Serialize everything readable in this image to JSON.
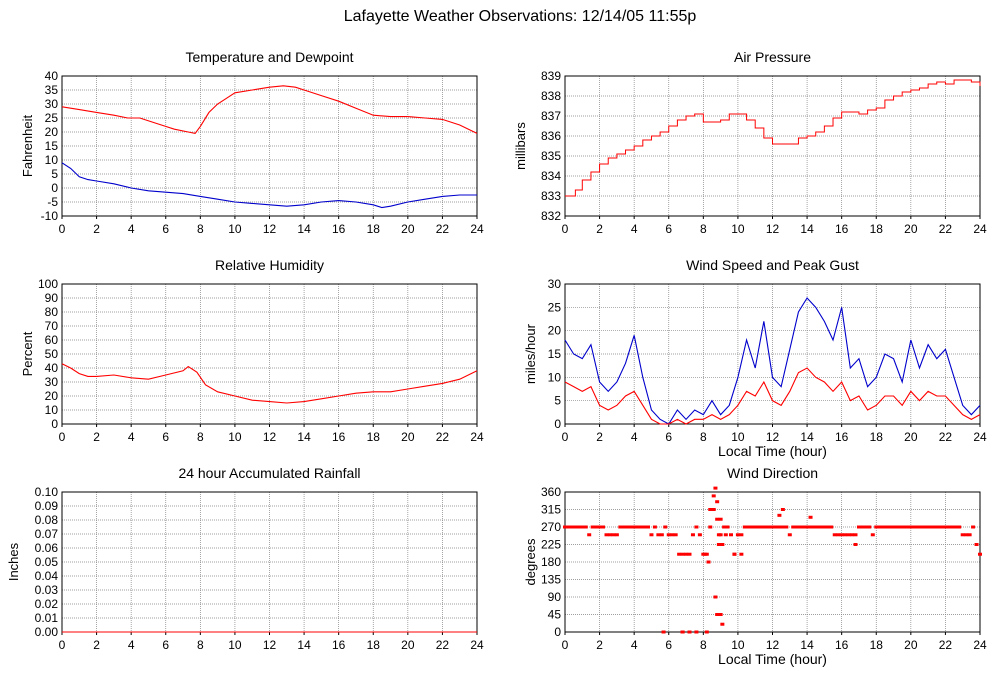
{
  "page": {
    "title": "Lafayette Weather Observations: 12/14/05 11:55p"
  },
  "colors": {
    "red": "#ff0000",
    "blue": "#0000cc",
    "grid": "#808080"
  },
  "chart_data": [
    {
      "id": "temp",
      "type": "line",
      "title": "Temperature and Dewpoint",
      "xlabel": "",
      "ylabel": "Fahrenheit",
      "xlim": [
        0,
        24
      ],
      "ylim": [
        -10,
        40
      ],
      "xticks": [
        0,
        2,
        4,
        6,
        8,
        10,
        12,
        14,
        16,
        18,
        20,
        22,
        24
      ],
      "yticks": [
        -10,
        -5,
        0,
        5,
        10,
        15,
        20,
        25,
        30,
        35,
        40
      ],
      "grid": true,
      "series": [
        {
          "color": "red",
          "x": [
            0,
            1,
            2,
            3,
            3.8,
            4.5,
            5.5,
            6.5,
            7.3,
            7.7,
            8,
            8.5,
            9,
            9.5,
            10,
            11,
            12,
            12.8,
            13.5,
            14,
            15,
            16,
            17,
            18,
            19,
            20,
            21,
            22,
            23,
            24
          ],
          "y": [
            29,
            28,
            27,
            26,
            25,
            25,
            23,
            21,
            20,
            19.5,
            22,
            27,
            30,
            32,
            34,
            35,
            36,
            36.5,
            36,
            35,
            33,
            31,
            28.5,
            26,
            25.5,
            25.5,
            25,
            24.5,
            22.5,
            19.5
          ]
        },
        {
          "color": "blue",
          "x": [
            0,
            0.5,
            1,
            1.5,
            2,
            3,
            4,
            5,
            6,
            7,
            8,
            9,
            10,
            11,
            12,
            13,
            14,
            15,
            16,
            17,
            18,
            18.5,
            19,
            20,
            21,
            22,
            23,
            24
          ],
          "y": [
            9,
            7,
            4,
            3,
            2.5,
            1.5,
            0,
            -1,
            -1.5,
            -2,
            -3,
            -4,
            -5,
            -5.5,
            -6,
            -6.5,
            -6,
            -5,
            -4.5,
            -5,
            -6,
            -7,
            -6.5,
            -5,
            -4,
            -3,
            -2.5,
            -2.5
          ]
        }
      ]
    },
    {
      "id": "pressure",
      "type": "line",
      "title": "Air Pressure",
      "xlabel": "",
      "ylabel": "millibars",
      "xlim": [
        0,
        24
      ],
      "ylim": [
        832,
        839
      ],
      "xticks": [
        0,
        2,
        4,
        6,
        8,
        10,
        12,
        14,
        16,
        18,
        20,
        22,
        24
      ],
      "yticks": [
        832,
        833,
        834,
        835,
        836,
        837,
        838,
        839
      ],
      "grid": true,
      "series": [
        {
          "color": "red",
          "x": [
            0,
            0.6,
            1,
            1.5,
            2,
            2.5,
            3,
            3.5,
            4,
            4.5,
            5,
            5.5,
            6,
            6.5,
            7,
            7.5,
            8,
            9,
            9.5,
            10,
            10.5,
            11,
            11.5,
            12,
            13,
            13.5,
            14,
            14.5,
            15,
            15.5,
            16,
            16.5,
            17,
            17.5,
            18,
            18.5,
            19,
            19.5,
            20,
            20.5,
            21,
            21.5,
            22,
            22.5,
            23,
            23.5,
            24
          ],
          "y": [
            833,
            833.3,
            833.8,
            834.2,
            834.6,
            834.9,
            835.1,
            835.3,
            835.5,
            835.8,
            836,
            836.2,
            836.5,
            836.8,
            837,
            837.1,
            836.7,
            836.8,
            837.1,
            837.1,
            836.8,
            836.4,
            835.9,
            835.6,
            835.6,
            835.9,
            836,
            836.2,
            836.5,
            836.9,
            837.2,
            837.2,
            837.1,
            837.3,
            837.4,
            837.8,
            838,
            838.2,
            838.3,
            838.4,
            838.6,
            838.7,
            838.6,
            838.8,
            838.8,
            838.7,
            838.5
          ]
        }
      ]
    },
    {
      "id": "humidity",
      "type": "line",
      "title": "Relative Humidity",
      "xlabel": "",
      "ylabel": "Percent",
      "xlim": [
        0,
        24
      ],
      "ylim": [
        0,
        100
      ],
      "xticks": [
        0,
        2,
        4,
        6,
        8,
        10,
        12,
        14,
        16,
        18,
        20,
        22,
        24
      ],
      "yticks": [
        0,
        10,
        20,
        30,
        40,
        50,
        60,
        70,
        80,
        90,
        100
      ],
      "grid": true,
      "series": [
        {
          "color": "red",
          "x": [
            0,
            0.5,
            1,
            1.5,
            2,
            3,
            4,
            5,
            6,
            7,
            7.3,
            7.8,
            8.3,
            9,
            10,
            11,
            12,
            13,
            14,
            15,
            16,
            17,
            18,
            19,
            20,
            21,
            22,
            23,
            24
          ],
          "y": [
            43,
            40,
            36,
            34,
            34,
            35,
            33,
            32,
            35,
            38,
            41,
            37,
            28,
            23,
            20,
            17,
            16,
            15,
            16,
            18,
            20,
            22,
            23,
            23,
            25,
            27,
            29,
            32,
            38
          ]
        }
      ]
    },
    {
      "id": "wind-speed",
      "type": "line",
      "title": "Wind Speed and Peak Gust",
      "xlabel": "Local Time (hour)",
      "ylabel": "miles/hour",
      "xlim": [
        0,
        24
      ],
      "ylim": [
        0,
        30
      ],
      "xticks": [
        0,
        2,
        4,
        6,
        8,
        10,
        12,
        14,
        16,
        18,
        20,
        22,
        24
      ],
      "yticks": [
        0,
        5,
        10,
        15,
        20,
        25,
        30
      ],
      "grid": true,
      "series": [
        {
          "color": "blue",
          "x": [
            0,
            0.5,
            1,
            1.5,
            2,
            2.5,
            3,
            3.5,
            4,
            4.5,
            5,
            5.5,
            6,
            6.5,
            7,
            7.5,
            8,
            8.5,
            9,
            9.5,
            10,
            10.5,
            11,
            11.5,
            12,
            12.5,
            13,
            13.5,
            14,
            14.5,
            15,
            15.5,
            16,
            16.5,
            17,
            17.5,
            18,
            18.5,
            19,
            19.5,
            20,
            20.5,
            21,
            21.5,
            22,
            22.5,
            23,
            23.5,
            24
          ],
          "y": [
            18,
            15,
            14,
            17,
            9,
            7,
            9,
            13,
            19,
            10,
            3,
            1,
            0,
            3,
            1,
            3,
            2,
            5,
            2,
            4,
            10,
            18,
            12,
            22,
            10,
            8,
            16,
            24,
            27,
            25,
            22,
            18,
            25,
            12,
            14,
            8,
            10,
            15,
            14,
            9,
            18,
            12,
            17,
            14,
            16,
            10,
            4,
            2,
            4
          ]
        },
        {
          "color": "red",
          "x": [
            0,
            0.5,
            1,
            1.5,
            2,
            2.5,
            3,
            3.5,
            4,
            4.5,
            5,
            5.5,
            6,
            6.5,
            7,
            7.5,
            8,
            8.5,
            9,
            9.5,
            10,
            10.5,
            11,
            11.5,
            12,
            12.5,
            13,
            13.5,
            14,
            14.5,
            15,
            15.5,
            16,
            16.5,
            17,
            17.5,
            18,
            18.5,
            19,
            19.5,
            20,
            20.5,
            21,
            21.5,
            22,
            22.5,
            23,
            23.5,
            24
          ],
          "y": [
            9,
            8,
            7,
            8,
            4,
            3,
            4,
            6,
            7,
            4,
            1,
            0,
            0,
            1,
            0,
            1,
            1,
            2,
            1,
            2,
            4,
            7,
            6,
            9,
            5,
            4,
            7,
            11,
            12,
            10,
            9,
            7,
            9,
            5,
            6,
            3,
            4,
            6,
            6,
            4,
            7,
            5,
            7,
            6,
            6,
            4,
            2,
            1,
            2
          ]
        }
      ]
    },
    {
      "id": "rainfall",
      "type": "line",
      "title": "24 hour Accumulated Rainfall",
      "xlabel": "",
      "ylabel": "Inches",
      "xlim": [
        0,
        24
      ],
      "ylim": [
        0,
        0.1
      ],
      "xticks": [
        0,
        2,
        4,
        6,
        8,
        10,
        12,
        14,
        16,
        18,
        20,
        22,
        24
      ],
      "yticks": [
        0,
        0.01,
        0.02,
        0.03,
        0.04,
        0.05,
        0.06,
        0.07,
        0.08,
        0.09,
        0.1
      ],
      "ytick_labels": [
        "0.00",
        "0.01",
        "0.02",
        "0.03",
        "0.04",
        "0.05",
        "0.06",
        "0.07",
        "0.08",
        "0.09",
        "0.10"
      ],
      "grid": true,
      "series": [
        {
          "color": "red",
          "x": [
            0,
            24
          ],
          "y": [
            0,
            0
          ]
        }
      ]
    },
    {
      "id": "wind-direction",
      "type": "scatter",
      "title": "Wind Direction",
      "xlabel": "Local Time (hour)",
      "ylabel": "degrees",
      "xlim": [
        0,
        24
      ],
      "ylim": [
        0,
        360
      ],
      "xticks": [
        0,
        2,
        4,
        6,
        8,
        10,
        12,
        14,
        16,
        18,
        20,
        22,
        24
      ],
      "yticks": [
        0,
        45,
        90,
        135,
        180,
        225,
        270,
        315,
        360
      ],
      "grid": true,
      "series": [
        {
          "color": "red",
          "x": [
            0,
            0.2,
            0.4,
            0.6,
            0.8,
            1,
            1.2,
            1.4,
            1.6,
            1.8,
            2,
            2.2,
            2.4,
            2.6,
            2.8,
            3,
            3.2,
            3.4,
            3.6,
            3.8,
            4,
            4.2,
            4.4,
            4.6,
            4.8,
            5,
            5.2,
            5.4,
            5.6,
            5.8,
            6,
            6.2,
            6.4,
            6.6,
            6.8,
            7,
            7.2,
            7.4,
            7.6,
            7.8,
            8,
            8.1,
            8.2,
            8.3,
            8.4,
            8.5,
            8.6,
            8.7,
            8.8,
            8.9,
            9,
            9.1,
            9.2,
            9.4,
            9.6,
            9.8,
            10,
            10.2,
            10.4,
            10.6,
            10.8,
            11,
            11.2,
            11.4,
            11.6,
            11.8,
            12,
            12.2,
            12.4,
            12.6,
            12.8,
            13,
            13.2,
            13.4,
            13.6,
            13.8,
            14,
            14.2,
            14.4,
            14.6,
            14.8,
            15,
            15.2,
            15.4,
            15.6,
            15.8,
            16,
            16.2,
            16.4,
            16.6,
            16.8,
            17,
            17.2,
            17.4,
            17.6,
            17.8,
            18,
            18.2,
            18.4,
            18.6,
            18.8,
            19,
            19.2,
            19.4,
            19.6,
            19.8,
            20,
            20.2,
            20.4,
            20.6,
            20.8,
            21,
            21.2,
            21.4,
            21.6,
            21.8,
            22,
            22.2,
            22.4,
            22.6,
            22.8,
            23,
            23.2,
            23.4,
            23.6,
            23.8,
            24,
            8.7,
            8.8,
            8.9,
            9.0,
            9.1,
            8.6,
            8.8,
            9.0,
            6.8,
            7.2,
            7.6,
            8.2,
            8.4,
            8.9,
            9.3,
            9.8,
            10.2,
            12.4,
            12.6,
            14.2,
            16.8,
            5.7,
            6.8,
            7.2
          ],
          "y": [
            270,
            270,
            270,
            270,
            270,
            270,
            270,
            250,
            270,
            270,
            270,
            270,
            250,
            250,
            250,
            250,
            270,
            270,
            270,
            270,
            270,
            270,
            270,
            270,
            270,
            250,
            270,
            250,
            250,
            270,
            250,
            250,
            250,
            200,
            200,
            200,
            200,
            250,
            270,
            250,
            200,
            200,
            200,
            180,
            270,
            315,
            350,
            370,
            290,
            225,
            250,
            225,
            270,
            270,
            250,
            200,
            250,
            250,
            270,
            270,
            270,
            270,
            270,
            270,
            270,
            270,
            270,
            270,
            270,
            270,
            270,
            250,
            270,
            270,
            270,
            270,
            270,
            270,
            270,
            270,
            270,
            270,
            270,
            270,
            250,
            250,
            250,
            250,
            250,
            250,
            250,
            270,
            270,
            270,
            270,
            250,
            270,
            270,
            270,
            270,
            270,
            270,
            270,
            270,
            270,
            270,
            270,
            270,
            270,
            270,
            270,
            270,
            270,
            270,
            270,
            270,
            270,
            270,
            270,
            270,
            270,
            250,
            250,
            250,
            270,
            225,
            200,
            90,
            45,
            45,
            45,
            20,
            315,
            335,
            290,
            0,
            0,
            0,
            0,
            315,
            250,
            250,
            200,
            200,
            300,
            315,
            295,
            225,
            0,
            0,
            0
          ]
        }
      ]
    }
  ]
}
